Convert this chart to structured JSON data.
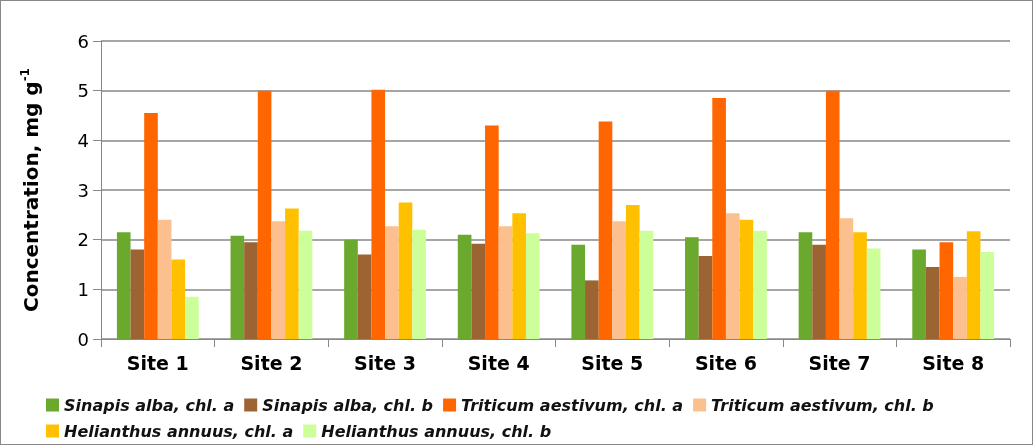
{
  "chart_data": {
    "type": "bar",
    "ylabel": "Concentration, mg g$^{-1}$",
    "categories": [
      "Site 1",
      "Site 2",
      "Site 3",
      "Site 4",
      "Site 5",
      "Site 6",
      "Site 7",
      "Site 8"
    ],
    "series": [
      {
        "name": "Sinapis alba, chl. a",
        "color": "#6aa82e",
        "values": [
          2.15,
          2.08,
          2.0,
          2.1,
          1.9,
          2.05,
          2.15,
          1.8
        ]
      },
      {
        "name": "Sinapis alba, chl. b",
        "color": "#9c6432",
        "values": [
          1.8,
          1.95,
          1.7,
          1.92,
          1.18,
          1.67,
          1.9,
          1.45
        ]
      },
      {
        "name": "Triticum aestivum, chl. a",
        "color": "#ff6600",
        "values": [
          4.55,
          5.0,
          5.02,
          4.3,
          4.38,
          4.85,
          5.0,
          1.95
        ]
      },
      {
        "name": "Triticum aestivum, chl. b",
        "color": "#fcbf8e",
        "values": [
          2.4,
          2.37,
          2.27,
          2.27,
          2.37,
          2.53,
          2.43,
          1.25
        ]
      },
      {
        "name": "Helianthus annuus, chl. a",
        "color": "#ffc000",
        "values": [
          1.6,
          2.63,
          2.75,
          2.53,
          2.7,
          2.4,
          2.15,
          2.17
        ]
      },
      {
        "name": "Helianthus annuus, chl. b",
        "color": "#ccff99",
        "values": [
          0.85,
          2.18,
          2.2,
          2.13,
          2.18,
          2.18,
          1.82,
          1.75
        ]
      }
    ],
    "ylim": [
      0,
      6
    ],
    "yticks": [
      0,
      1,
      2,
      3,
      4,
      5,
      6
    ],
    "grid": "y",
    "legend": "bottom"
  }
}
